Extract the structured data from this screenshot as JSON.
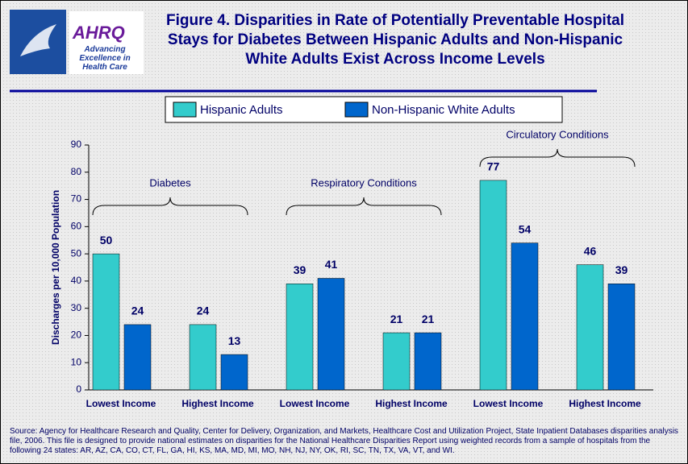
{
  "header": {
    "logo_name": "AHRQ",
    "logo_tagline": "Advancing Excellence in Health Care"
  },
  "chart_data": {
    "type": "bar",
    "title": "Figure 4. Disparities in Rate of Potentially Preventable Hospital Stays for Diabetes Between Hispanic Adults and Non-Hispanic White Adults Exist Across Income Levels",
    "y_label": "Discharges per 10,000 Population",
    "categories": [
      "Lowest Income",
      "Highest Income",
      "Lowest Income",
      "Highest Income",
      "Lowest Income",
      "Highest Income"
    ],
    "groups": [
      "Diabetes",
      "Respiratory Conditions",
      "Circulatory Conditions"
    ],
    "series": [
      {
        "name": "Hispanic Adults",
        "color": "#33cccc",
        "values": [
          50,
          24,
          39,
          21,
          77,
          46
        ]
      },
      {
        "name": "Non-Hispanic White Adults",
        "color": "#0066cc",
        "values": [
          24,
          13,
          41,
          21,
          54,
          39
        ]
      }
    ],
    "ylim": [
      0,
      90
    ],
    "yticks": [
      0,
      10,
      20,
      30,
      40,
      50,
      60,
      70,
      80,
      90
    ],
    "grid": false,
    "legend": "top"
  },
  "source": "Source: Agency for Healthcare Research and Quality, Center for Delivery, Organization, and Markets, Healthcare Cost and Utilization Project, State Inpatient Databases disparities analysis file, 2006. This file is designed to provide national estimates on disparities for the National Healthcare Disparities Report using weighted records from a sample of hospitals from the following 24 states: AR, AZ, CA, CO, CT, FL, GA, HI, KS, MA, MD, MI, MO, NH, NJ, NY, OK, RI, SC, TN, TX, VA, VT, and WI."
}
